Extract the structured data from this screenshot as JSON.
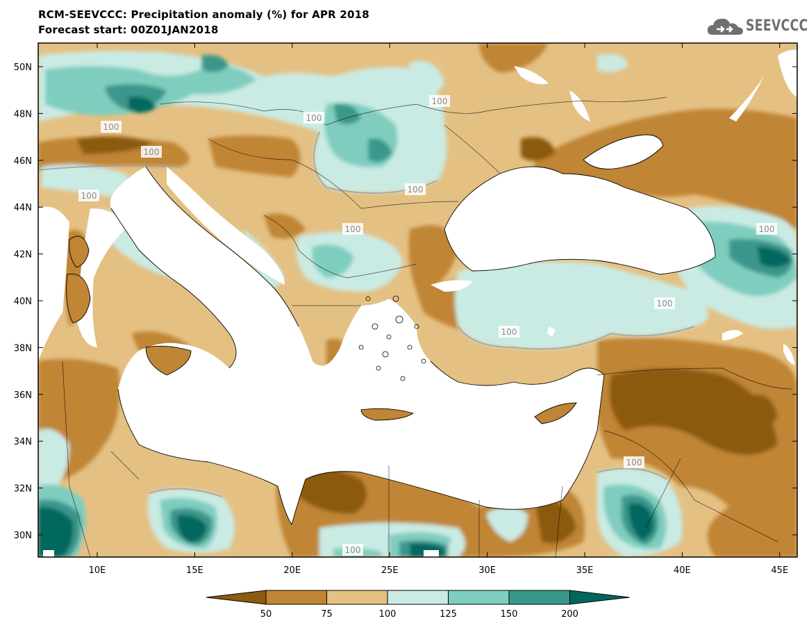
{
  "title_line1": "RCM-SEEVCCC: Precipitation anomaly (%) for APR 2018",
  "title_line2": "Forecast start: 00Z01JAN2018",
  "logo_text": "SEEVCCC",
  "latitude_labels": [
    "50N",
    "48N",
    "46N",
    "44N",
    "42N",
    "40N",
    "38N",
    "36N",
    "34N",
    "32N",
    "30N"
  ],
  "longitude_labels": [
    "10E",
    "15E",
    "20E",
    "25E",
    "30E",
    "35E",
    "40E",
    "45E"
  ],
  "contour_label": "100",
  "colorbar": {
    "ticks": [
      "50",
      "75",
      "100",
      "125",
      "150",
      "200"
    ],
    "colors": [
      "#8c5a10",
      "#c08535",
      "#e4c083",
      "#c9ebe4",
      "#7fcdbf",
      "#3a978b",
      "#00675e"
    ]
  }
}
